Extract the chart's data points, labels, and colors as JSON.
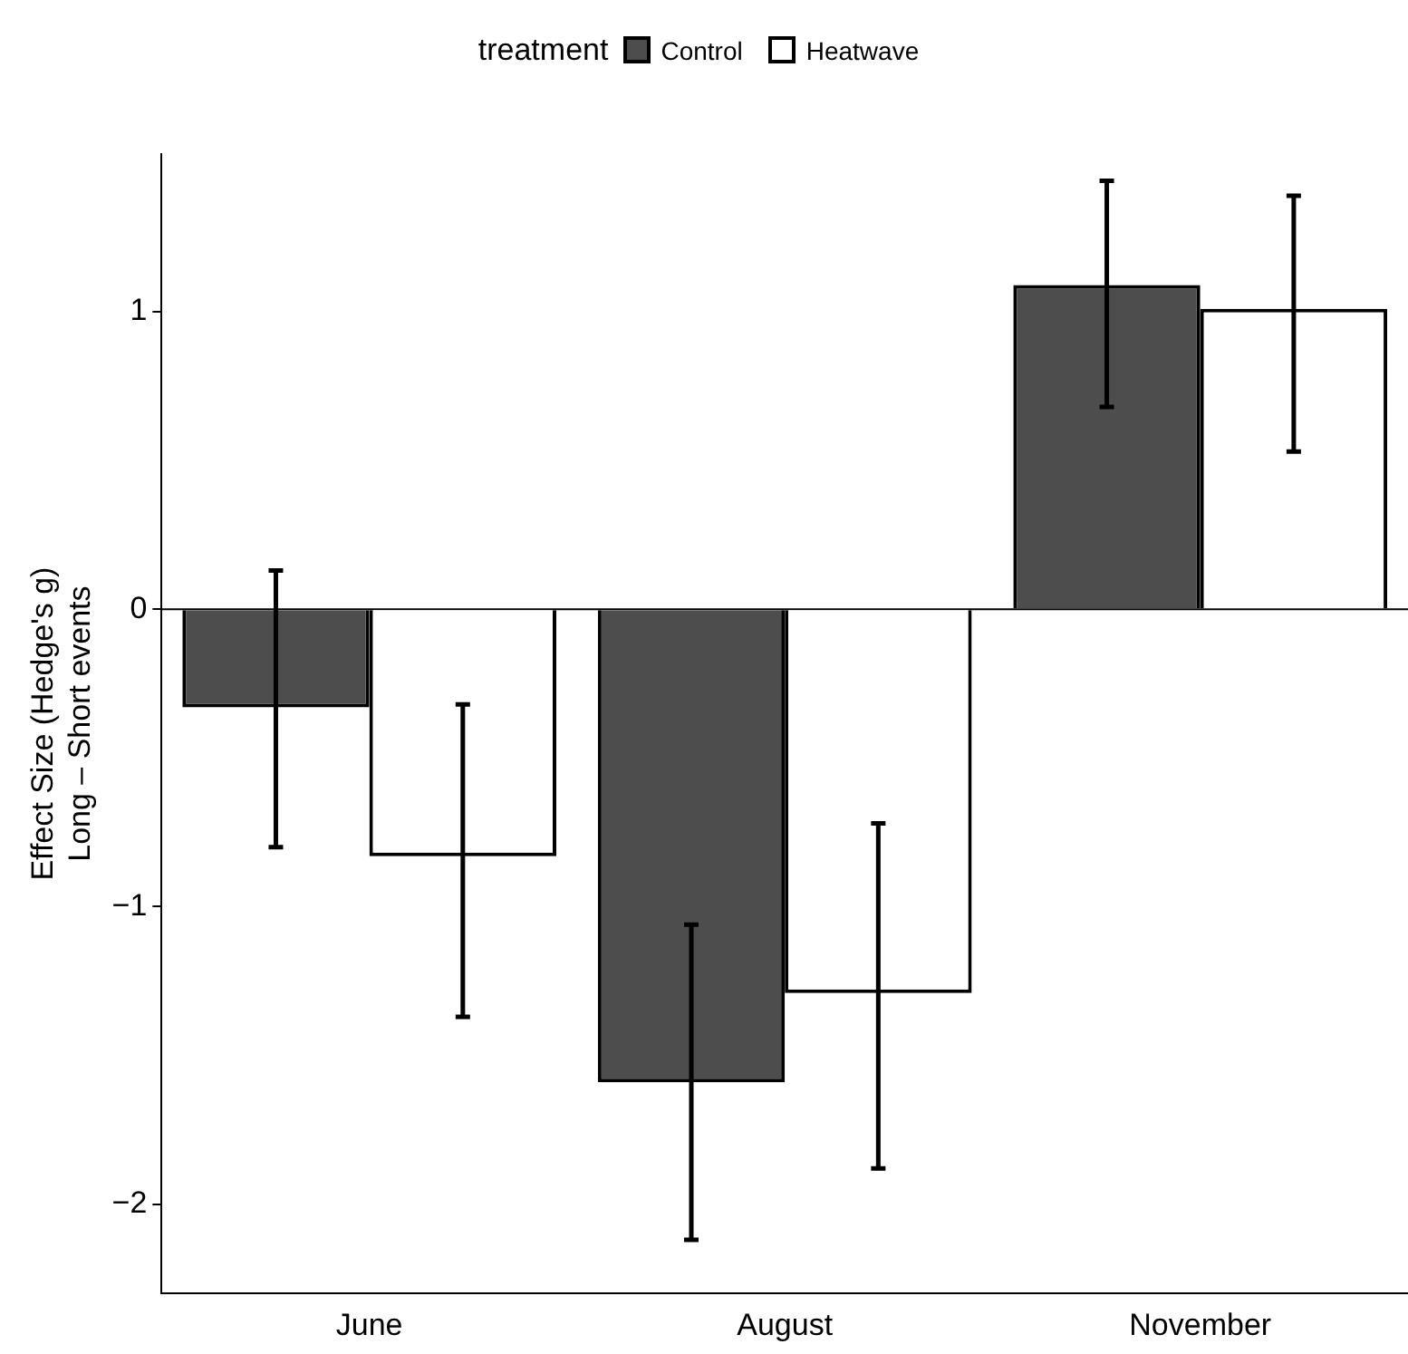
{
  "chart_data": {
    "type": "bar",
    "ylabel": "Effect Size (Hedge's g)\nLong – Short events",
    "legend_title": "treatment",
    "legend": "top",
    "grid": false,
    "categories": [
      "June",
      "August",
      "November"
    ],
    "series": [
      {
        "name": "Control",
        "color": "#4d4d4d",
        "values": [
          -0.33,
          -1.59,
          1.09
        ],
        "errors": [
          [
            -0.8,
            0.13
          ],
          [
            -2.12,
            -1.06
          ],
          [
            0.68,
            1.44
          ]
        ]
      },
      {
        "name": "Heatwave",
        "color": "#ffffff",
        "values": [
          -0.83,
          -1.29,
          1.01
        ],
        "errors": [
          [
            -1.37,
            -0.32
          ],
          [
            -1.88,
            -0.72
          ],
          [
            0.53,
            1.39
          ]
        ]
      }
    ],
    "ylim": [
      -2.3,
      1.53
    ],
    "yticks": [
      -2,
      -1,
      0,
      1
    ],
    "ref_lines": [
      {
        "axis": "y",
        "value": 0,
        "color": "#000000"
      }
    ]
  }
}
